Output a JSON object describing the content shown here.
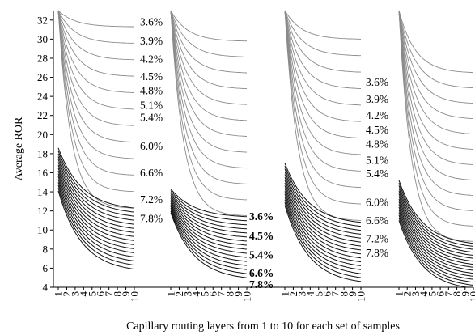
{
  "chart_data": {
    "type": "line",
    "title": "",
    "xlabel": "Capillary routing layers from 1 to 10 for each set of samples",
    "ylabel": "Average ROR",
    "ylim": [
      4,
      33
    ],
    "yticks": [
      4,
      6,
      8,
      10,
      12,
      14,
      16,
      18,
      20,
      22,
      24,
      26,
      28,
      30,
      32
    ],
    "x_layers": [
      "1",
      "2",
      "3",
      "4",
      "5",
      "6",
      "7",
      "8",
      "9",
      "10"
    ],
    "grid": false,
    "legend": "none",
    "series_colors": {
      "upper": "#8a8a8a",
      "lower": "#111111"
    },
    "panels": [
      {
        "name": "set-1",
        "upper": {
          "start": [
            33,
            33
          ],
          "end": [
            31.3,
            12.3
          ],
          "count": 12,
          "labels": [
            "3.6%",
            "3.9%",
            "4.2%",
            "4.5%",
            "4.8%",
            "5.1%",
            "5.4%",
            "6.0%",
            "6.6%",
            "7.2%",
            "7.8%"
          ],
          "label_values": [
            31.8,
            29.8,
            27.9,
            26.1,
            24.6,
            23.1,
            21.8,
            18.8,
            16.0,
            13.2,
            11.2
          ]
        },
        "lower": {
          "start": [
            18.6,
            14.1
          ],
          "end": [
            12.3,
            5.9
          ],
          "count": 16
        }
      },
      {
        "name": "set-2",
        "upper": {
          "start": [
            33,
            33
          ],
          "end": [
            29.8,
            11.5
          ],
          "count": 12
        },
        "lower": {
          "start": [
            14.3,
            11.8
          ],
          "end": [
            11.4,
            5.0
          ],
          "count": 16
        },
        "bold_labels": [
          "3.6%",
          "4.5%",
          "5.4%",
          "6.6%",
          "7.8%"
        ],
        "bold_label_values": [
          11.4,
          9.4,
          7.4,
          5.5,
          4.3
        ]
      },
      {
        "name": "set-3",
        "upper": {
          "start": [
            33,
            33
          ],
          "end": [
            30.0,
            11.0
          ],
          "count": 12
        },
        "lower": {
          "start": [
            17.0,
            12.6
          ],
          "end": [
            10.8,
            4.6
          ],
          "count": 16
        }
      },
      {
        "name": "set-4",
        "upper": {
          "start": [
            33,
            33
          ],
          "end": [
            26.5,
            8.8
          ],
          "count": 12,
          "labels": [
            "3.6%",
            "3.9%",
            "4.2%",
            "4.5%",
            "4.8%",
            "5.1%",
            "5.4%",
            "6.0%",
            "6.6%",
            "7.2%",
            "7.8%"
          ],
          "label_values": [
            25.5,
            23.7,
            22.0,
            20.5,
            19.0,
            17.3,
            15.9,
            12.9,
            11.0,
            9.1,
            7.6
          ]
        },
        "lower": {
          "start": [
            15.2,
            11.0
          ],
          "end": [
            8.6,
            3.9
          ],
          "count": 16
        }
      }
    ]
  }
}
